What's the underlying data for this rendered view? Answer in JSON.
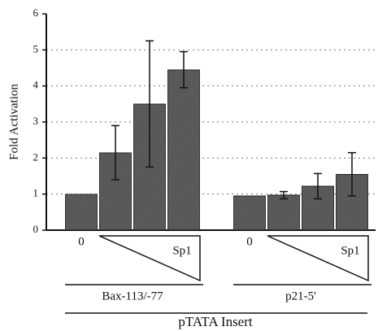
{
  "chart_data": {
    "type": "bar",
    "ylabel": "Fold Activation",
    "xlabel": "pTATA Insert",
    "categories": [
      null,
      null,
      null,
      null,
      null,
      null,
      null,
      null
    ],
    "values": [
      1.0,
      2.15,
      3.5,
      4.45,
      0.95,
      0.97,
      1.22,
      1.55
    ],
    "errors": [
      null,
      0.75,
      1.75,
      0.5,
      null,
      0.1,
      0.35,
      0.6
    ],
    "color": "#666666",
    "ylim": [
      0,
      6
    ],
    "yticks": [
      0,
      1,
      2,
      3,
      4,
      5,
      6
    ],
    "grid": true,
    "groups": [
      {
        "label": "Bax-113/-77",
        "zero_label": "0",
        "ramp_label": "Sp1"
      },
      {
        "label": "p21-5'",
        "zero_label": "0",
        "ramp_label": "Sp1"
      }
    ]
  }
}
